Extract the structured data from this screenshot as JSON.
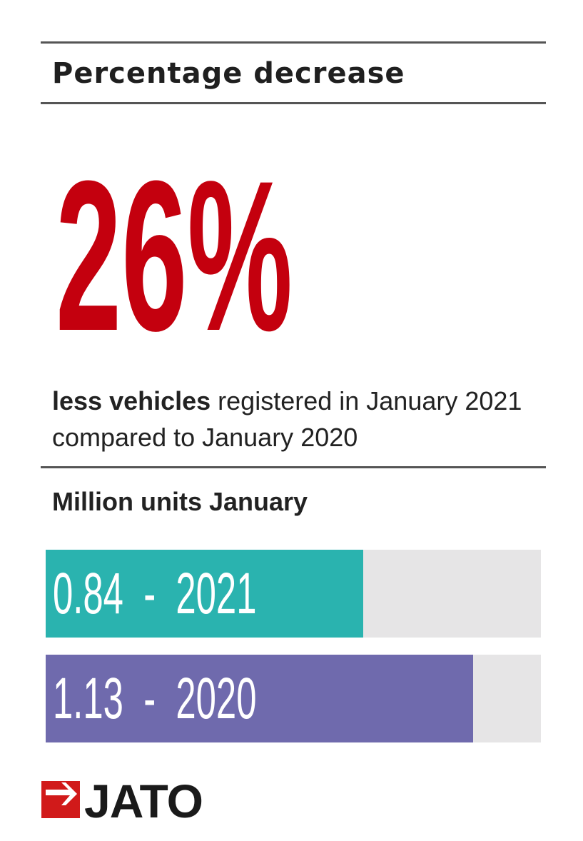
{
  "header": {
    "title": "Percentage decrease"
  },
  "stat": {
    "value": "26%"
  },
  "description": {
    "bold": "less vehicles",
    "rest": " registered in January 2021 compared to January 2020"
  },
  "chart_title": "Million units January",
  "chart_data": {
    "type": "bar",
    "orientation": "horizontal",
    "title": "Million units January",
    "categories": [
      "2021",
      "2020"
    ],
    "values": [
      0.84,
      1.13
    ],
    "labels": [
      "0.84  -  2021",
      "1.13  -  2020"
    ],
    "xlim": [
      0,
      1.31
    ],
    "colors": [
      "#2ab3af",
      "#6f6aad"
    ],
    "track_color": "#e6e5e6"
  },
  "brand": {
    "logo_text": "JATO",
    "accent": "#d11a1a"
  }
}
